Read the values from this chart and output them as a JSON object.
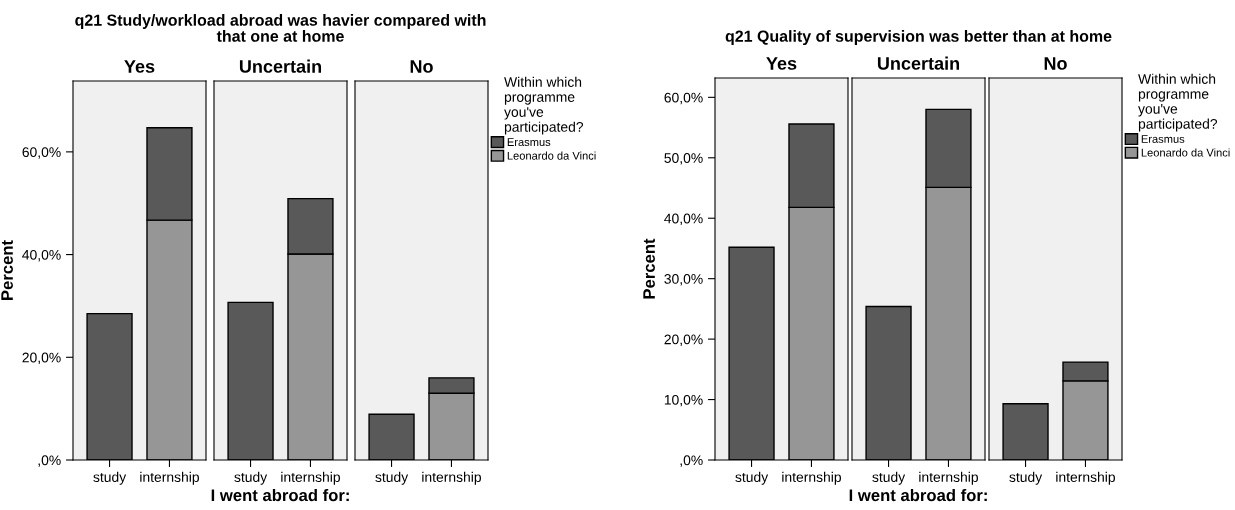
{
  "chart_data": [
    {
      "type": "bar",
      "stacked": true,
      "title": "q21 Study/workload abroad was havier compared with\nthat one at home",
      "subtitle": "Yes",
      "ylabel": "Percent",
      "categories": [
        "study",
        "internship"
      ],
      "ylim": [
        0,
        73.8
      ],
      "yticks": [
        {
          "value": 0,
          "label": ",0%"
        },
        {
          "value": 20,
          "label": "20,0%"
        },
        {
          "value": 40,
          "label": "40,0%"
        },
        {
          "value": 60,
          "label": "60,0%"
        }
      ],
      "series": [
        {
          "color": "#969696",
          "values": [
            null,
            46.7
          ]
        },
        {
          "color": "#595959",
          "values": [
            28.5,
            18.0
          ]
        }
      ]
    },
    {
      "type": "bar",
      "stacked": true,
      "subtitle": "Uncertain",
      "xlabel": "I went abroad for:",
      "categories": [
        "study",
        "internship"
      ],
      "ylim": [
        0,
        73.8
      ],
      "tick_labels": "x",
      "series": [
        {
          "color": "#969696",
          "values": [
            null,
            40.1
          ]
        },
        {
          "color": "#595959",
          "values": [
            30.7,
            10.8
          ]
        }
      ]
    },
    {
      "type": "bar",
      "stacked": true,
      "subtitle": "No",
      "categories": [
        "study",
        "internship"
      ],
      "ylim": [
        0,
        73.8
      ],
      "tick_labels": "x",
      "legend": "top right",
      "legend_title": "Within which\nprogramme\nyou've\nparticipated?",
      "series": [
        {
          "name": "Leonardo da Vinci",
          "color": "#969696",
          "values": [
            null,
            13.0
          ]
        },
        {
          "name": "Erasmus",
          "color": "#595959",
          "values": [
            8.9,
            3.0
          ]
        }
      ]
    },
    {
      "type": "bar",
      "stacked": true,
      "title": "q21 Quality of supervision was better than at home",
      "subtitle": "Yes",
      "ylabel": "Percent",
      "categories": [
        "study",
        "internship"
      ],
      "ylim": [
        0,
        63.2
      ],
      "yticks": [
        {
          "value": 0,
          "label": ",0%"
        },
        {
          "value": 10,
          "label": "10,0%"
        },
        {
          "value": 20,
          "label": "20,0%"
        },
        {
          "value": 30,
          "label": "30,0%"
        },
        {
          "value": 40,
          "label": "40,0%"
        },
        {
          "value": 50,
          "label": "50,0%"
        },
        {
          "value": 60,
          "label": "60,0%"
        }
      ],
      "series": [
        {
          "color": "#969696",
          "values": [
            null,
            41.8
          ]
        },
        {
          "color": "#595959",
          "values": [
            35.2,
            13.8
          ]
        }
      ]
    },
    {
      "type": "bar",
      "stacked": true,
      "subtitle": "Uncertain",
      "xlabel": "I went abroad for:",
      "categories": [
        "study",
        "internship"
      ],
      "ylim": [
        0,
        63.2
      ],
      "tick_labels": "x",
      "series": [
        {
          "color": "#969696",
          "values": [
            null,
            45.1
          ]
        },
        {
          "color": "#595959",
          "values": [
            25.4,
            12.9
          ]
        }
      ]
    },
    {
      "type": "bar",
      "stacked": true,
      "subtitle": "No",
      "categories": [
        "study",
        "internship"
      ],
      "ylim": [
        0,
        63.2
      ],
      "tick_labels": "x",
      "legend": "top right",
      "legend_title": "Within which\nprogramme\nyou've\nparticipated?",
      "series": [
        {
          "name": "Leonardo da Vinci",
          "color": "#969696",
          "values": [
            null,
            13.1
          ]
        },
        {
          "name": "Erasmus",
          "color": "#595959",
          "values": [
            9.3,
            3.1
          ]
        }
      ]
    }
  ]
}
